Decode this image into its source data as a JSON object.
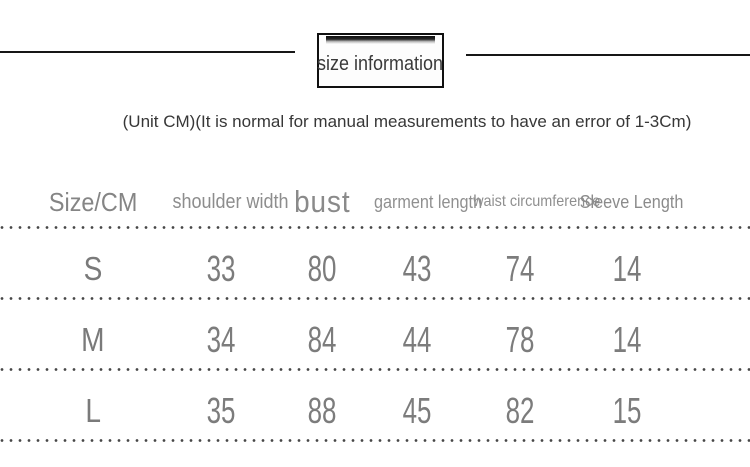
{
  "colors": {
    "divider": "#171717",
    "heading_text": "#3a3a3a",
    "header_gray": "#8a8a8a",
    "value_gray": "#7c7c7c",
    "dot_gray": "#474747"
  },
  "chart_data": {
    "type": "table",
    "title": "size information",
    "subtitle": "(Unit CM)(It is normal for manual measurements to have an error of 1-3Cm)",
    "unit": "CM",
    "columns": [
      "Size/CM",
      "shoulder width",
      "bust",
      "garment length",
      "waist circumference",
      "Sleeve Length"
    ],
    "rows": [
      [
        "S",
        33,
        80,
        43,
        74,
        14
      ],
      [
        "M",
        34,
        84,
        44,
        78,
        14
      ],
      [
        "L",
        35,
        88,
        45,
        82,
        15
      ]
    ]
  }
}
